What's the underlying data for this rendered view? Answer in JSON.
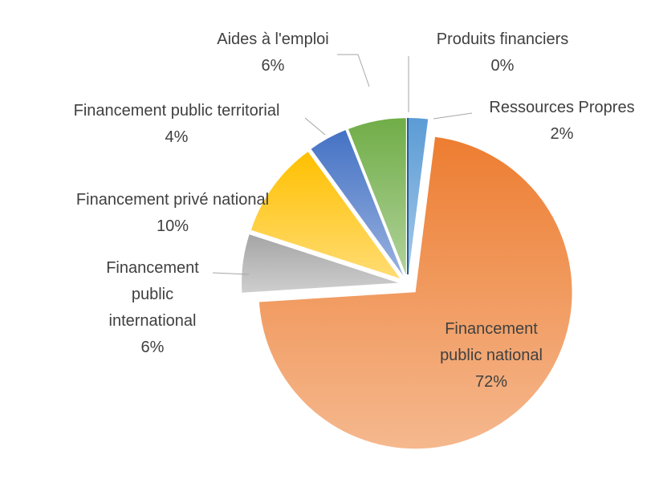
{
  "chart_data": {
    "type": "pie",
    "categories": [
      "Ressources Propres",
      "Financement public national",
      "Financement public international",
      "Financement privé national",
      "Financement public territorial",
      "Aides à l'emploi",
      "Produits financiers"
    ],
    "values": [
      2,
      72,
      6,
      10,
      4,
      6,
      0
    ],
    "value_labels": [
      "2%",
      "72%",
      "6%",
      "10%",
      "4%",
      "6%",
      "0%"
    ],
    "colors": [
      "#5b9bd5",
      "#ed7d31",
      "#a5a5a5",
      "#ffc000",
      "#4472c4",
      "#70ad47",
      "#255e91"
    ]
  }
}
